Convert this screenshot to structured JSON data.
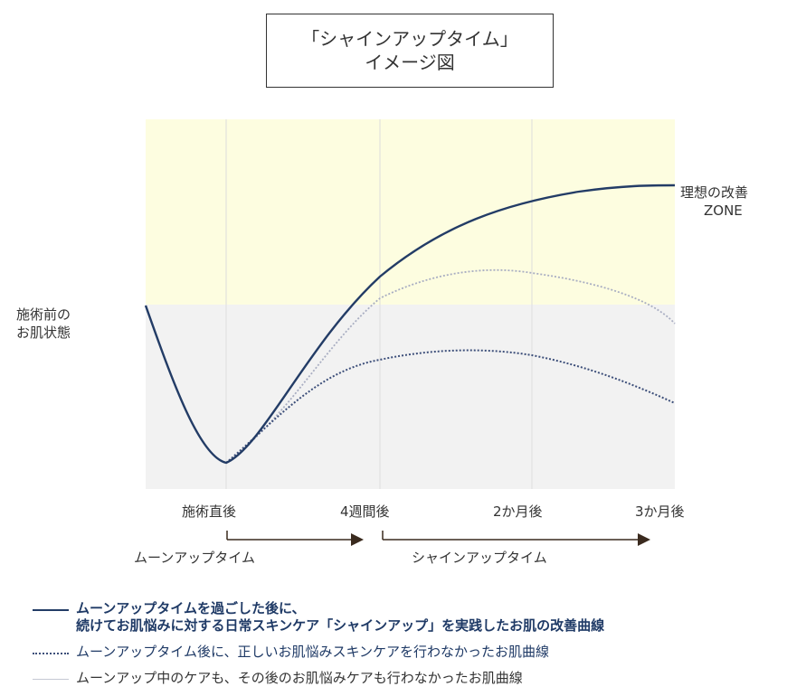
{
  "title": {
    "line1": "「シャインアップタイム」",
    "line2": "イメージ図"
  },
  "side_label": {
    "line1": "施術前の",
    "line2": "お肌状態"
  },
  "zone_label": {
    "line1": "理想の改善",
    "line2": "ZONE"
  },
  "phases": [
    {
      "label": "ムーンアップタイム"
    },
    {
      "label": "シャインアップタイム"
    }
  ],
  "legend": [
    {
      "line1": "ムーンアップタイムを過ごした後に、",
      "line2": "続けてお肌悩みに対する日常スキンケア「シャインアップ」を実践したお肌の改善曲線"
    },
    {
      "line1": "ムーンアップタイム後に、正しいお肌悩みスキンケアを行わなかったお肌曲線"
    },
    {
      "line1": "ムーンアップ中のケアも、その後のお肌悩みケアも行わなかったお肌曲線"
    }
  ],
  "colors": {
    "ideal_zone_bg": "#fdfde0",
    "base_zone_bg": "#f2f2f2",
    "line_main": "#233c66",
    "line_dotted": "#3d4f7a",
    "line_light": "#a9aec2",
    "grid": "#dddddd",
    "arrow": "#3a2a1e"
  },
  "chart_data": {
    "type": "line",
    "x_labels": [
      "施術直後",
      "4週間後",
      "2か月後",
      "3か月後"
    ],
    "y_scale": "qualitative (no numeric axis)",
    "zones": [
      {
        "label": "理想の改善 ZONE",
        "region": "above baseline"
      },
      {
        "label": "施術前の お肌状態",
        "region": "baseline level"
      }
    ],
    "series": [
      {
        "name": "ムーンアップタイムを過ごした後に、続けてお肌悩みに対する日常スキンケア「シャインアップ」を実践したお肌の改善曲線",
        "style": "solid",
        "shape": "dips after treatment, rises steadily into the ideal zone and plateaus"
      },
      {
        "name": "ムーンアップタイム後に、正しいお肌悩みスキンケアを行わなかったお肌曲線",
        "style": "dotted",
        "shape": "recovers to just below baseline around 2 months, then declines"
      },
      {
        "name": "ムーンアップ中のケアも、その後のお肌悩みケアも行わなかったお肌曲線",
        "style": "light dotted",
        "shape": "rises slightly into the ideal zone around 2 months, then falls back toward baseline"
      }
    ]
  }
}
